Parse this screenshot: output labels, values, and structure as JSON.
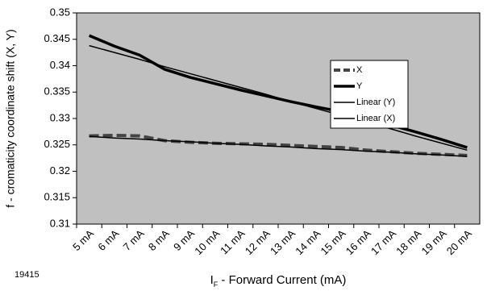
{
  "chart_data": {
    "type": "line",
    "y_label": "f - cromaticity coordinate shift (X, Y)",
    "x_label": [
      "I",
      "F",
      " - Forward Current (mA)"
    ],
    "note": "19415",
    "categories": [
      "5 mA",
      "6 mA",
      "7 mA",
      "8 mA",
      "9 mA",
      "10 mA",
      "11 mA",
      "12 mA",
      "13 mA",
      "14 mA",
      "15 mA",
      "16 mA",
      "17 mA",
      "18 mA",
      "19 mA",
      "20 mA"
    ],
    "series": [
      {
        "name": "X",
        "color": "#444444",
        "dashed": true,
        "width": 4,
        "values": [
          0.3267,
          0.3268,
          0.3267,
          0.3258,
          0.3255,
          0.3253,
          0.3252,
          0.3251,
          0.3249,
          0.3247,
          0.3245,
          0.324,
          0.3237,
          0.3234,
          0.3232,
          0.323
        ]
      },
      {
        "name": "Y",
        "color": "#000000",
        "dashed": false,
        "width": 3.5,
        "values": [
          0.3457,
          0.3437,
          0.342,
          0.3393,
          0.3378,
          0.3366,
          0.3354,
          0.3343,
          0.3332,
          0.3322,
          0.3313,
          0.33,
          0.3287,
          0.3274,
          0.326,
          0.3245
        ]
      },
      {
        "name": "Linear (Y)",
        "color": "#000000",
        "dashed": false,
        "width": 1.5,
        "values": [
          0.3438,
          0.3425,
          0.3412,
          0.3398,
          0.3385,
          0.3372,
          0.3359,
          0.3346,
          0.3332,
          0.3319,
          0.3306,
          0.3293,
          0.328,
          0.3266,
          0.3253,
          0.324
        ]
      },
      {
        "name": "Linear (X)",
        "color": "#000000",
        "dashed": false,
        "width": 1.5,
        "values": [
          0.3266,
          0.3263,
          0.3261,
          0.3258,
          0.3256,
          0.3253,
          0.3251,
          0.3248,
          0.3246,
          0.3243,
          0.3241,
          0.3238,
          0.3236,
          0.3233,
          0.3231,
          0.3228
        ]
      }
    ],
    "ylim": [
      0.31,
      0.35
    ],
    "yticks": [
      0.31,
      0.315,
      0.32,
      0.325,
      0.33,
      0.335,
      0.34,
      0.345,
      0.35
    ],
    "plot_background": "#c0c0c0",
    "grid": false,
    "legend": "center right"
  }
}
